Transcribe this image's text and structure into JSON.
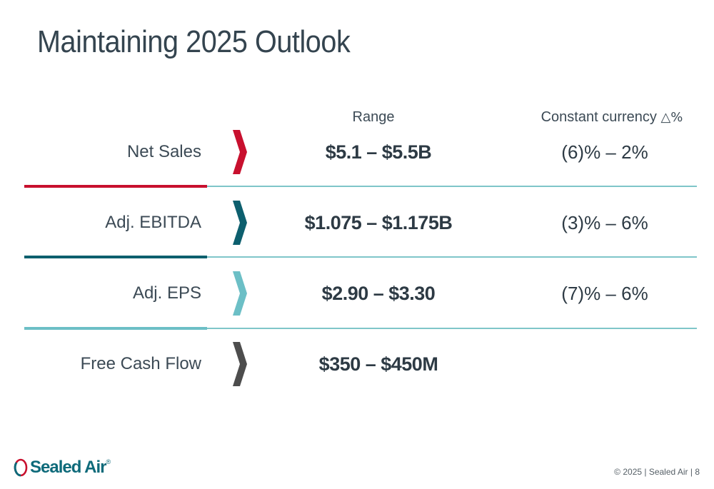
{
  "title": "Maintaining 2025 Outlook",
  "headers": {
    "range": "Range",
    "constant_currency": "Constant currency",
    "delta_symbol": "△%"
  },
  "rows": [
    {
      "label": "Net Sales",
      "range": "$5.1 – $5.5B",
      "constant_currency": "(6)% – 2%",
      "accent": "#c8102e"
    },
    {
      "label": "Adj. EBITDA",
      "range": "$1.075 – $1.175B",
      "constant_currency": "(3)% – 6%",
      "accent": "#0d5f6e"
    },
    {
      "label": "Adj. EPS",
      "range": "$2.90 – $3.30",
      "constant_currency": "(7)% – 6%",
      "accent": "#6cbfc6"
    },
    {
      "label": "Free Cash Flow",
      "range": "$350 – $450M",
      "constant_currency": "",
      "accent": "#4d4d4d"
    }
  ],
  "logo": {
    "name": "Sealed Air",
    "registered": "®",
    "color": "#0e6a7a"
  },
  "footer": "© 2025 | Sealed Air | 8"
}
